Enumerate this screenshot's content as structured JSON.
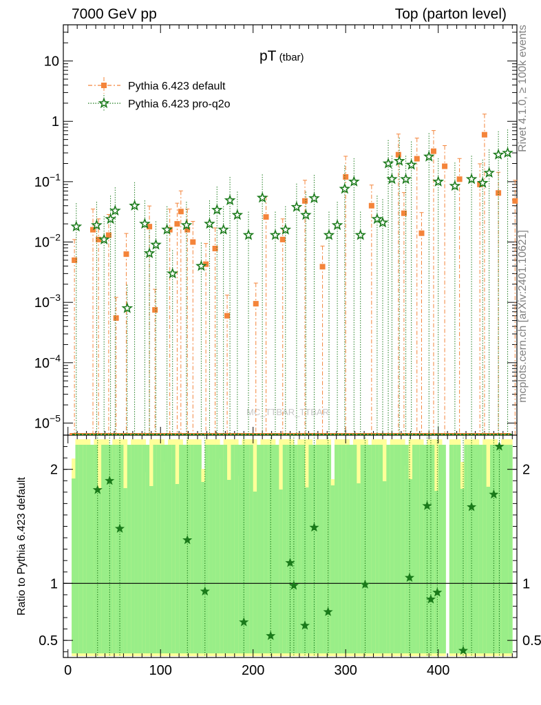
{
  "header": {
    "left": "7000 GeV pp",
    "right": "Top (parton level)"
  },
  "side_text": {
    "rivet": "Rivet 4.1.0, ≥ 100k events",
    "mcplots": "mcplots.cern.ch [arXiv:2401.10621]"
  },
  "watermark": "MC_TTBAR_TTBAR",
  "chart_data": {
    "type": "scatter",
    "title": "pT",
    "title_sub": "(tbar)",
    "xlim": [
      -5,
      485
    ],
    "top_ylim_log10": [
      -5.2,
      1.6
    ],
    "ratio_ylim": [
      0.35,
      2.3
    ],
    "xticks": [
      0,
      100,
      200,
      300,
      400
    ],
    "top_yticks": [
      {
        "label": "10",
        "exp": "",
        "log": 1
      },
      {
        "label": "1",
        "exp": "",
        "log": 0
      },
      {
        "label": "10",
        "exp": "−1",
        "log": -1
      },
      {
        "label": "10",
        "exp": "−2",
        "log": -2
      },
      {
        "label": "10",
        "exp": "−3",
        "log": -3
      },
      {
        "label": "10",
        "exp": "−4",
        "log": -4
      },
      {
        "label": "10",
        "exp": "−5",
        "log": -5
      }
    ],
    "ratio_yticks": [
      {
        "label": "2",
        "value": 2
      },
      {
        "label": "1",
        "value": 1
      },
      {
        "label": "0.5",
        "value": 0.5
      }
    ],
    "ratio_ylabel": "Ratio to Pythia 6.423 default",
    "legend": [
      {
        "name": "Pythia 6.423 default",
        "color": "#f4843a",
        "marker": "square"
      },
      {
        "name": "Pythia 6.423 pro-q2o",
        "color": "#1a7a1a",
        "marker": "star"
      }
    ],
    "series": [
      {
        "name": "Pythia 6.423 default",
        "x": [
          7,
          27,
          33,
          44,
          52,
          63,
          88,
          94,
          110,
          118,
          122,
          129,
          135,
          149,
          159,
          172,
          203,
          214,
          232,
          256,
          275,
          300,
          328,
          357,
          363,
          377,
          382,
          395,
          407,
          423,
          445,
          450,
          465,
          483
        ],
        "y": [
          0.005,
          0.016,
          0.011,
          0.013,
          0.00055,
          0.0063,
          0.018,
          0.00075,
          0.016,
          0.02,
          0.032,
          0.016,
          0.01,
          0.0043,
          0.0078,
          0.0006,
          0.00095,
          0.026,
          0.011,
          0.048,
          0.0039,
          0.12,
          0.04,
          0.28,
          0.03,
          0.24,
          0.014,
          0.32,
          0.18,
          0.11,
          0.09,
          0.6,
          0.065,
          0.048
        ]
      },
      {
        "name": "Pythia 6.423 pro-q2o",
        "x": [
          9,
          31,
          39,
          46,
          51,
          64,
          72,
          83,
          88,
          95,
          107,
          113,
          128,
          144,
          153,
          161,
          168,
          175,
          183,
          195,
          210,
          224,
          235,
          247,
          257,
          266,
          282,
          291,
          299,
          309,
          316,
          334,
          340,
          346,
          350,
          358,
          365,
          371,
          390,
          400,
          418,
          436,
          448,
          455,
          465,
          475
        ],
        "y": [
          0.018,
          0.019,
          0.011,
          0.024,
          0.033,
          0.0008,
          0.04,
          0.02,
          0.0065,
          0.009,
          0.016,
          0.003,
          0.019,
          0.004,
          0.02,
          0.034,
          0.016,
          0.049,
          0.028,
          0.013,
          0.054,
          0.013,
          0.016,
          0.038,
          0.028,
          0.053,
          0.013,
          0.019,
          0.076,
          0.1,
          0.013,
          0.024,
          0.021,
          0.2,
          0.11,
          0.22,
          0.11,
          0.19,
          0.26,
          0.1,
          0.085,
          0.11,
          0.095,
          0.14,
          0.28,
          0.3
        ]
      }
    ],
    "ratio_points": {
      "name": "Pythia 6.423 pro-q2o",
      "x": [
        32,
        45,
        56,
        129,
        148,
        190,
        219,
        240,
        244,
        256,
        266,
        281,
        321,
        369,
        388,
        392,
        399,
        427,
        436,
        460,
        466
      ],
      "y": [
        1.82,
        1.9,
        1.48,
        1.38,
        0.93,
        0.66,
        0.54,
        1.18,
        0.98,
        0.63,
        1.49,
        0.75,
        0.99,
        1.05,
        1.68,
        0.86,
        0.92,
        0.41,
        1.67,
        1.78,
        2.2
      ]
    }
  }
}
